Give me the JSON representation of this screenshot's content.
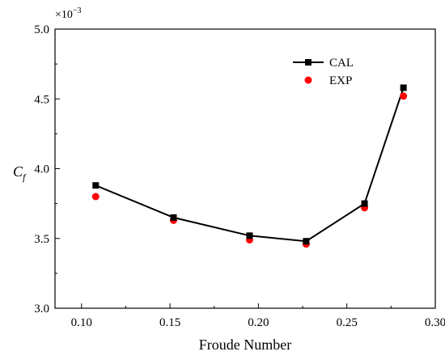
{
  "chart_data": {
    "type": "line",
    "xlabel": "Froude Number",
    "ylabel_main": "C",
    "ylabel_sub": "f",
    "y_multiplier_base": "×10",
    "y_multiplier_exp": "−3",
    "xlim": [
      0.085,
      0.3
    ],
    "ylim": [
      3.0,
      5.0
    ],
    "xticks": [
      0.1,
      0.15,
      0.2,
      0.25,
      0.3
    ],
    "xtick_labels": [
      "0.10",
      "0.15",
      "0.20",
      "0.25",
      "0.30"
    ],
    "yticks": [
      3.0,
      3.5,
      4.0,
      4.5,
      5.0
    ],
    "ytick_labels": [
      "3.0",
      "3.5",
      "4.0",
      "4.5",
      "5.0"
    ],
    "grid": false,
    "legend_position": "top-right",
    "series": [
      {
        "name": "CAL",
        "style": "line-square",
        "color": "#000000",
        "x": [
          0.108,
          0.152,
          0.195,
          0.227,
          0.26,
          0.282
        ],
        "y": [
          3.88,
          3.65,
          3.52,
          3.48,
          3.75,
          4.58
        ]
      },
      {
        "name": "EXP",
        "style": "circle",
        "color": "#ff0000",
        "x": [
          0.108,
          0.152,
          0.195,
          0.227,
          0.26,
          0.282
        ],
        "y": [
          3.8,
          3.63,
          3.49,
          3.46,
          3.72,
          4.52
        ]
      }
    ]
  }
}
